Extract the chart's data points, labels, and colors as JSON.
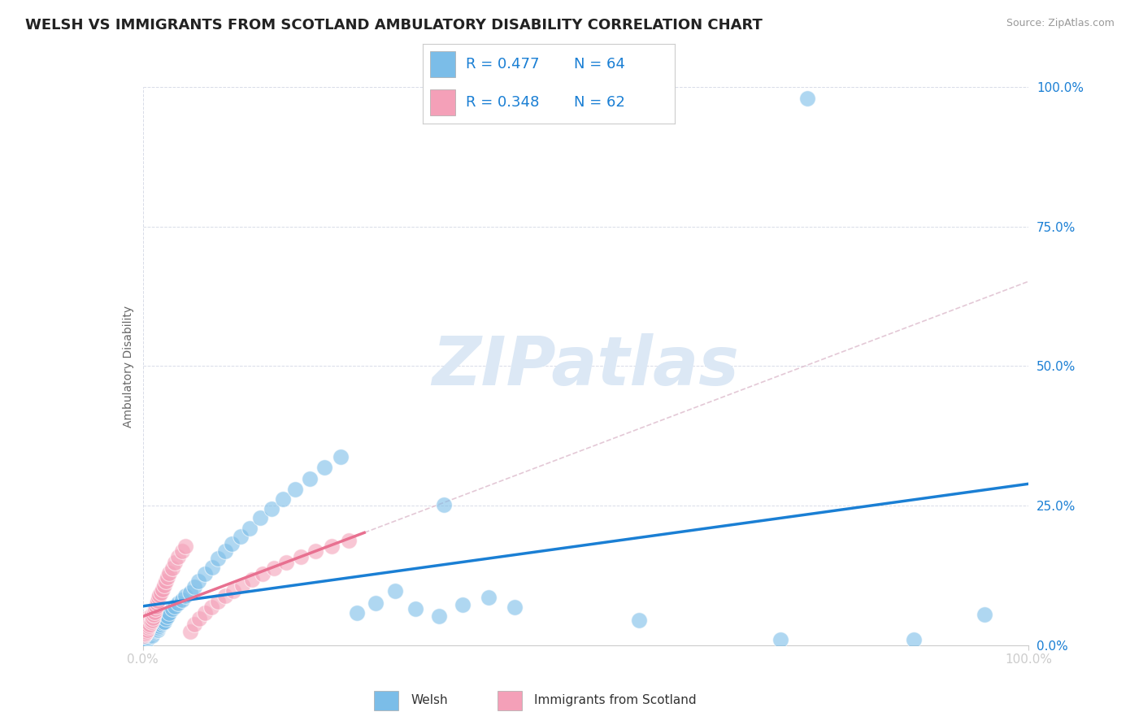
{
  "title": "WELSH VS IMMIGRANTS FROM SCOTLAND AMBULATORY DISABILITY CORRELATION CHART",
  "source": "Source: ZipAtlas.com",
  "ylabel": "Ambulatory Disability",
  "xlim": [
    0,
    1
  ],
  "ylim": [
    0,
    1
  ],
  "xtick_positions": [
    0,
    1
  ],
  "xtick_labels": [
    "0.0%",
    "100.0%"
  ],
  "ytick_values": [
    0,
    0.25,
    0.5,
    0.75,
    1.0
  ],
  "ytick_labels": [
    "0.0%",
    "25.0%",
    "50.0%",
    "75.0%",
    "100.0%"
  ],
  "r_welsh": 0.477,
  "n_welsh": 64,
  "r_immigrants": 0.348,
  "n_immigrants": 62,
  "welsh_color": "#7bbde8",
  "immigrants_color": "#f4a0b8",
  "welsh_line_color": "#1a7fd4",
  "immigrants_line_color": "#e87090",
  "diag_line_color": "#ddbbcc",
  "watermark_color": "#dce8f5",
  "watermark_text": "ZIPatlas",
  "title_fontsize": 13,
  "legend_r_color": "#1a7fd4",
  "legend_n_color": "#333333",
  "background_color": "#ffffff",
  "grid_color": "#d8dce8",
  "welsh_x": [
    0.002,
    0.003,
    0.003,
    0.004,
    0.005,
    0.005,
    0.006,
    0.007,
    0.007,
    0.008,
    0.009,
    0.01,
    0.01,
    0.011,
    0.012,
    0.013,
    0.014,
    0.015,
    0.016,
    0.017,
    0.018,
    0.019,
    0.02,
    0.022,
    0.024,
    0.026,
    0.028,
    0.03,
    0.033,
    0.036,
    0.04,
    0.044,
    0.048,
    0.053,
    0.058,
    0.063,
    0.07,
    0.078,
    0.085,
    0.093,
    0.1,
    0.11,
    0.12,
    0.132,
    0.145,
    0.158,
    0.172,
    0.188,
    0.205,
    0.223,
    0.242,
    0.263,
    0.285,
    0.308,
    0.334,
    0.361,
    0.39,
    0.42,
    0.34,
    0.56,
    0.72,
    0.87,
    0.95,
    0.75
  ],
  "welsh_y": [
    0.008,
    0.012,
    0.018,
    0.015,
    0.01,
    0.02,
    0.015,
    0.018,
    0.022,
    0.02,
    0.025,
    0.022,
    0.018,
    0.025,
    0.028,
    0.03,
    0.032,
    0.035,
    0.03,
    0.028,
    0.032,
    0.035,
    0.038,
    0.04,
    0.042,
    0.048,
    0.052,
    0.058,
    0.065,
    0.07,
    0.075,
    0.082,
    0.088,
    0.095,
    0.105,
    0.115,
    0.128,
    0.14,
    0.155,
    0.168,
    0.182,
    0.195,
    0.21,
    0.228,
    0.245,
    0.262,
    0.28,
    0.298,
    0.318,
    0.338,
    0.058,
    0.075,
    0.098,
    0.065,
    0.052,
    0.072,
    0.085,
    0.068,
    0.252,
    0.045,
    0.01,
    0.01,
    0.055,
    0.98
  ],
  "immigrants_x": [
    0.001,
    0.001,
    0.002,
    0.002,
    0.002,
    0.003,
    0.003,
    0.003,
    0.004,
    0.004,
    0.004,
    0.005,
    0.005,
    0.005,
    0.006,
    0.006,
    0.006,
    0.007,
    0.007,
    0.008,
    0.008,
    0.009,
    0.009,
    0.01,
    0.01,
    0.011,
    0.012,
    0.013,
    0.014,
    0.015,
    0.016,
    0.017,
    0.018,
    0.019,
    0.02,
    0.022,
    0.024,
    0.026,
    0.028,
    0.03,
    0.033,
    0.036,
    0.04,
    0.044,
    0.048,
    0.053,
    0.058,
    0.064,
    0.07,
    0.077,
    0.085,
    0.093,
    0.102,
    0.112,
    0.123,
    0.135,
    0.148,
    0.162,
    0.178,
    0.195,
    0.213,
    0.232
  ],
  "immigrants_y": [
    0.018,
    0.025,
    0.02,
    0.028,
    0.032,
    0.022,
    0.03,
    0.038,
    0.025,
    0.035,
    0.042,
    0.028,
    0.038,
    0.045,
    0.032,
    0.042,
    0.05,
    0.035,
    0.045,
    0.038,
    0.048,
    0.042,
    0.052,
    0.045,
    0.055,
    0.05,
    0.055,
    0.06,
    0.065,
    0.07,
    0.075,
    0.08,
    0.085,
    0.09,
    0.095,
    0.1,
    0.108,
    0.115,
    0.122,
    0.13,
    0.138,
    0.148,
    0.158,
    0.168,
    0.178,
    0.025,
    0.038,
    0.048,
    0.058,
    0.068,
    0.078,
    0.088,
    0.098,
    0.108,
    0.118,
    0.128,
    0.138,
    0.148,
    0.158,
    0.168,
    0.178,
    0.188
  ]
}
